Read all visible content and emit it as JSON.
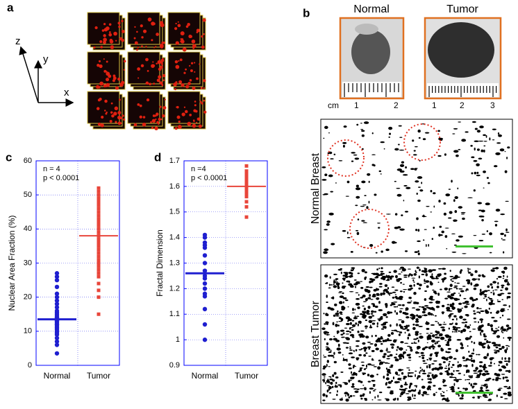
{
  "figure": {
    "panel_labels": [
      "a",
      "b",
      "c",
      "d"
    ],
    "axes_labels": [
      "z",
      "y",
      "x"
    ],
    "photo_titles": [
      "Normal",
      "Tumor"
    ],
    "ruler_unit": "cm",
    "ruler_normal": [
      "1",
      "2"
    ],
    "ruler_tumor": [
      "1",
      "2",
      "3"
    ],
    "image_labels": [
      "Normal Breast",
      "Breast Tumor"
    ]
  },
  "chart_data": [
    {
      "type": "strip",
      "ylabel": "Nuclear Area Fraction (%)",
      "annotations": [
        "n = 4",
        "p < 0.0001"
      ],
      "categories": [
        "Normal",
        "Tumor"
      ],
      "colors": [
        "#1f1fd0",
        "#e8453a"
      ],
      "markers": [
        "circle",
        "square"
      ],
      "points": [
        [
          3.5,
          6,
          7,
          8,
          9,
          9.5,
          10,
          10.5,
          11,
          11,
          11.5,
          12,
          12,
          12.5,
          13,
          13,
          13.5,
          14,
          14,
          14.5,
          15,
          15.5,
          16,
          17,
          18,
          19,
          20,
          21,
          23,
          25,
          26,
          27
        ],
        [
          15,
          20,
          22,
          24,
          26,
          27,
          28,
          29,
          30,
          31,
          32,
          33,
          34,
          35,
          36,
          37,
          38,
          39,
          40,
          41,
          42,
          43,
          44,
          45,
          46,
          47,
          48,
          49,
          50,
          51,
          52
        ]
      ],
      "means": [
        13.5,
        38
      ],
      "ylim": [
        0,
        60
      ],
      "yticks": [
        0,
        10,
        20,
        30,
        40,
        50,
        60
      ],
      "grid": true
    },
    {
      "type": "strip",
      "ylabel": "Fractal Dimension",
      "annotations": [
        "n =4",
        "p < 0.0001"
      ],
      "categories": [
        "Normal",
        "Tumor"
      ],
      "colors": [
        "#1f1fd0",
        "#e8453a"
      ],
      "markers": [
        "circle",
        "square"
      ],
      "points": [
        [
          1.0,
          1.06,
          1.12,
          1.17,
          1.18,
          1.2,
          1.22,
          1.24,
          1.25,
          1.27,
          1.3,
          1.33,
          1.36,
          1.37,
          1.38,
          1.4,
          1.41
        ],
        [
          1.48,
          1.52,
          1.54,
          1.56,
          1.57,
          1.58,
          1.59,
          1.6,
          1.61,
          1.62,
          1.63,
          1.64,
          1.65,
          1.66,
          1.68
        ]
      ],
      "means": [
        1.26,
        1.6
      ],
      "ylim": [
        0.9,
        1.7
      ],
      "yticks": [
        0.9,
        1,
        1.1,
        1.2,
        1.3,
        1.4,
        1.5,
        1.6,
        1.7
      ],
      "grid": true
    }
  ]
}
